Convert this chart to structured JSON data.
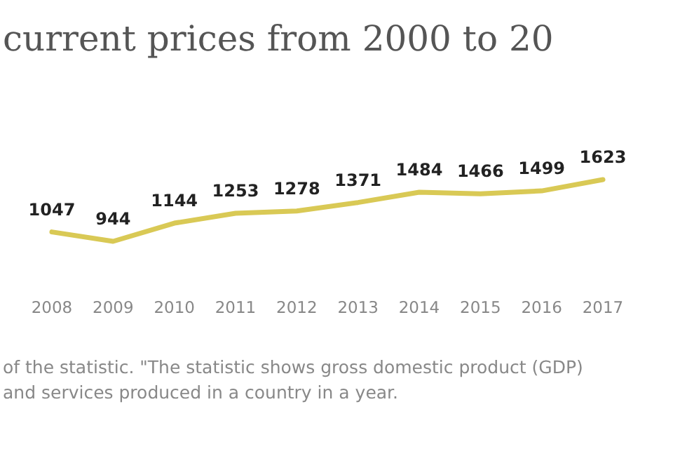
{
  "chart_data": {
    "type": "line",
    "title": "current prices from 2000 to 20",
    "categories": [
      "2008",
      "2009",
      "2010",
      "2011",
      "2012",
      "2013",
      "2014",
      "2015",
      "2016",
      "2017"
    ],
    "series": [
      {
        "color": "#d9c955",
        "values": [
          1047,
          944,
          1144,
          1253,
          1278,
          1371,
          1484,
          1466,
          1499,
          1623
        ]
      }
    ],
    "data_labels": true,
    "marker": "none",
    "line_style": "solid",
    "annotations": [
      "of the statistic. \"The statistic shows gross domestic product (GDP)",
      "and services produced in a country in a year."
    ]
  }
}
